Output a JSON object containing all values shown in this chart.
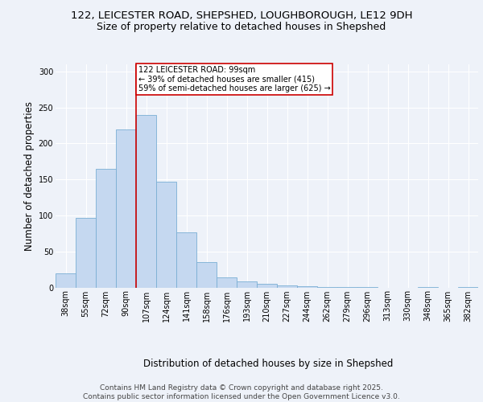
{
  "title_line1": "122, LEICESTER ROAD, SHEPSHED, LOUGHBOROUGH, LE12 9DH",
  "title_line2": "Size of property relative to detached houses in Shepshed",
  "xlabel": "Distribution of detached houses by size in Shepshed",
  "ylabel": "Number of detached properties",
  "categories": [
    "38sqm",
    "55sqm",
    "72sqm",
    "90sqm",
    "107sqm",
    "124sqm",
    "141sqm",
    "158sqm",
    "176sqm",
    "193sqm",
    "210sqm",
    "227sqm",
    "244sqm",
    "262sqm",
    "279sqm",
    "296sqm",
    "313sqm",
    "330sqm",
    "348sqm",
    "365sqm",
    "382sqm"
  ],
  "values": [
    20,
    97,
    165,
    220,
    240,
    147,
    77,
    35,
    14,
    8,
    5,
    3,
    2,
    1,
    1,
    1,
    0,
    0,
    1,
    0,
    1
  ],
  "bar_color": "#c5d8f0",
  "bar_edge_color": "#7aafd4",
  "vline_x": 3.5,
  "vline_color": "#cc0000",
  "annotation_text": "122 LEICESTER ROAD: 99sqm\n← 39% of detached houses are smaller (415)\n59% of semi-detached houses are larger (625) →",
  "annotation_box_color": "#ffffff",
  "annotation_border_color": "#cc0000",
  "ylim": [
    0,
    310
  ],
  "yticks": [
    0,
    50,
    100,
    150,
    200,
    250,
    300
  ],
  "background_color": "#eef2f9",
  "grid_color": "#ffffff",
  "footer_text": "Contains HM Land Registry data © Crown copyright and database right 2025.\nContains public sector information licensed under the Open Government Licence v3.0.",
  "title_fontsize": 9.5,
  "subtitle_fontsize": 9,
  "axis_label_fontsize": 8.5,
  "tick_fontsize": 7,
  "footer_fontsize": 6.5
}
